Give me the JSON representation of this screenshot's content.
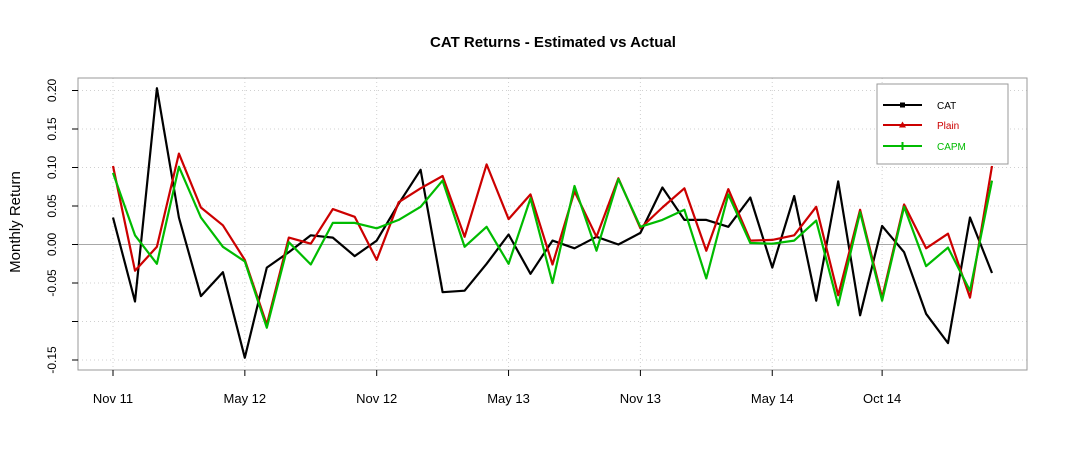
{
  "chart_data": {
    "type": "line",
    "title": "CAT Returns - Estimated vs Actual",
    "xlabel": "",
    "ylabel": "Monthly Return",
    "ylim": [
      -0.165,
      0.22
    ],
    "x_ticks": [
      {
        "index": 0,
        "label": "Nov 11"
      },
      {
        "index": 6,
        "label": "May 12"
      },
      {
        "index": 12,
        "label": "Nov 12"
      },
      {
        "index": 18,
        "label": "May 13"
      },
      {
        "index": 24,
        "label": "Nov 13"
      },
      {
        "index": 30,
        "label": "May 14"
      },
      {
        "index": 35,
        "label": "Oct 14"
      }
    ],
    "y_ticks": [
      -0.15,
      -0.1,
      -0.05,
      0.0,
      0.05,
      0.1,
      0.15,
      0.2
    ],
    "y_tick_labels": [
      "-0.15",
      "",
      "-0.05",
      "0.00",
      "0.05",
      "0.10",
      "0.15",
      "0.20"
    ],
    "grid": true,
    "zero_line": true,
    "legend": {
      "position": "top-right"
    },
    "colors": {
      "CAT": "#000000",
      "Plain": "#cc0000",
      "CAPM": "#00bb00"
    },
    "series": [
      {
        "name": "CAT",
        "marker": "square",
        "values": [
          0.035,
          -0.074,
          0.203,
          0.035,
          -0.067,
          -0.036,
          -0.147,
          -0.03,
          -0.01,
          0.012,
          0.009,
          -0.015,
          0.005,
          0.053,
          0.097,
          -0.062,
          -0.06,
          -0.025,
          0.013,
          -0.038,
          0.005,
          -0.005,
          0.01,
          0.0,
          0.015,
          0.074,
          0.032,
          0.032,
          0.023,
          0.061,
          -0.03,
          0.063,
          -0.073,
          0.082,
          -0.092,
          0.024,
          -0.01,
          -0.09,
          -0.128,
          0.035,
          -0.037
        ]
      },
      {
        "name": "Plain",
        "marker": "triangle",
        "values": [
          0.102,
          -0.034,
          -0.003,
          0.118,
          0.048,
          0.025,
          -0.02,
          -0.104,
          0.009,
          0.001,
          0.046,
          0.036,
          -0.02,
          0.055,
          0.073,
          0.089,
          0.01,
          0.104,
          0.033,
          0.065,
          -0.026,
          0.069,
          0.01,
          0.086,
          0.021,
          0.048,
          0.073,
          -0.008,
          0.072,
          0.005,
          0.006,
          0.012,
          0.049,
          -0.066,
          0.045,
          -0.069,
          0.052,
          -0.005,
          0.014,
          -0.069,
          0.102
        ]
      },
      {
        "name": "CAPM",
        "marker": "plus",
        "values": [
          0.093,
          0.012,
          -0.025,
          0.101,
          0.035,
          -0.003,
          -0.022,
          -0.108,
          0.003,
          -0.026,
          0.028,
          0.028,
          0.021,
          0.032,
          0.049,
          0.083,
          -0.003,
          0.023,
          -0.025,
          0.06,
          -0.05,
          0.076,
          -0.008,
          0.085,
          0.023,
          0.032,
          0.045,
          -0.044,
          0.065,
          0.002,
          0.001,
          0.005,
          0.031,
          -0.079,
          0.042,
          -0.073,
          0.049,
          -0.028,
          -0.004,
          -0.06,
          0.083
        ]
      }
    ]
  }
}
